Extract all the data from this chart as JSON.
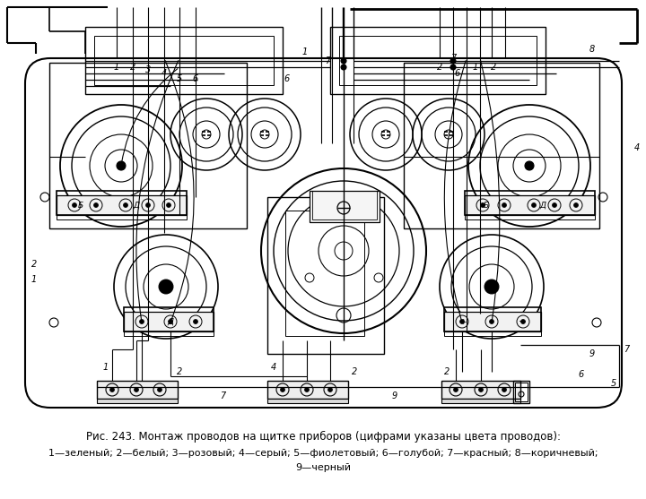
{
  "title": "Рис. 243. Монтаж проводов на щитке приборов (цифрами указаны цвета проводов):",
  "legend_line1": "1—зеленый; 2—белый; 3—розовый; 4—серый; 5—фиолетовый; 6—голубой; 7—красный; 8—коричневый;",
  "legend_line2": "9—черный",
  "bg_color": "#ffffff",
  "fig_width": 7.2,
  "fig_height": 5.57,
  "dpi": 100
}
